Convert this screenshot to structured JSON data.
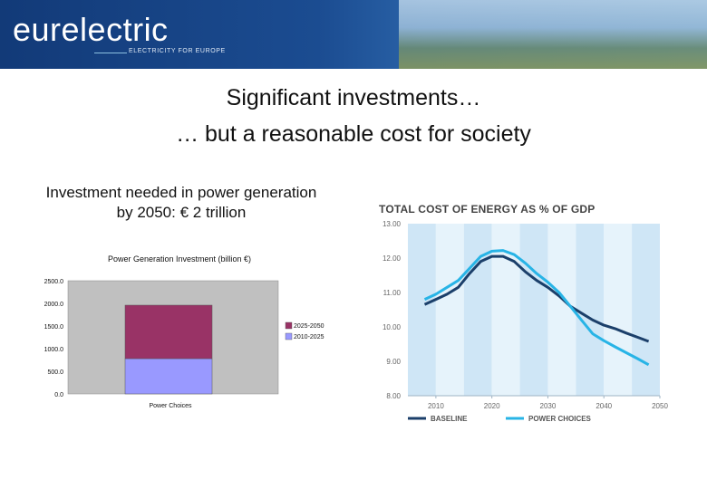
{
  "header": {
    "logo_text": "eurelectric",
    "tagline": "ELECTRICITY FOR EUROPE"
  },
  "slide": {
    "title_line1": "Significant investments…",
    "title_line2": "… but a reasonable cost for society",
    "left_caption": "Investment needed in power generation by 2050: € 2 trillion"
  },
  "colors": {
    "series_2025_2050": "#993366",
    "series_2010_2025": "#9999ff",
    "baseline": "#1b3f6a",
    "power_choices": "#28b4e6"
  },
  "chart_data": [
    {
      "type": "bar",
      "stacked": true,
      "title": "Power Generation Investment (billion €)",
      "categories": [
        "Power Choices"
      ],
      "series": [
        {
          "name": "2010-2025",
          "values": [
            780
          ]
        },
        {
          "name": "2025-2050",
          "values": [
            1180
          ]
        }
      ],
      "yticks": [
        "0.0",
        "500.0",
        "1000.0",
        "1500.0",
        "2000.0",
        "2500.0"
      ],
      "ylim": [
        0,
        2500
      ],
      "legend": "right",
      "grid": false
    },
    {
      "type": "line",
      "title": "TOTAL COST OF ENERGY AS % OF GDP",
      "xticks": [
        "2010",
        "2020",
        "2030",
        "2040",
        "2050"
      ],
      "yticks": [
        "8.00",
        "9.00",
        "10.00",
        "11.00",
        "12.00",
        "13.00"
      ],
      "xlim": [
        2005,
        2050
      ],
      "ylim": [
        8,
        13
      ],
      "series": [
        {
          "name": "BASELINE",
          "x": [
            2008,
            2010,
            2012,
            2014,
            2016,
            2018,
            2020,
            2022,
            2024,
            2026,
            2028,
            2030,
            2032,
            2034,
            2036,
            2038,
            2040,
            2042,
            2044,
            2046,
            2048
          ],
          "y": [
            10.65,
            10.8,
            10.95,
            11.15,
            11.55,
            11.9,
            12.05,
            12.05,
            11.9,
            11.6,
            11.35,
            11.15,
            10.9,
            10.6,
            10.4,
            10.2,
            10.05,
            9.95,
            9.82,
            9.7,
            9.58
          ]
        },
        {
          "name": "POWER CHOICES",
          "x": [
            2008,
            2010,
            2012,
            2014,
            2016,
            2018,
            2020,
            2022,
            2024,
            2026,
            2028,
            2030,
            2032,
            2034,
            2036,
            2038,
            2040,
            2042,
            2044,
            2046,
            2048
          ],
          "y": [
            10.8,
            10.95,
            11.15,
            11.35,
            11.7,
            12.05,
            12.2,
            12.22,
            12.1,
            11.85,
            11.55,
            11.3,
            11.0,
            10.6,
            10.2,
            9.8,
            9.6,
            9.42,
            9.25,
            9.08,
            8.9
          ]
        }
      ],
      "legend": "bottom",
      "grid": false
    }
  ]
}
